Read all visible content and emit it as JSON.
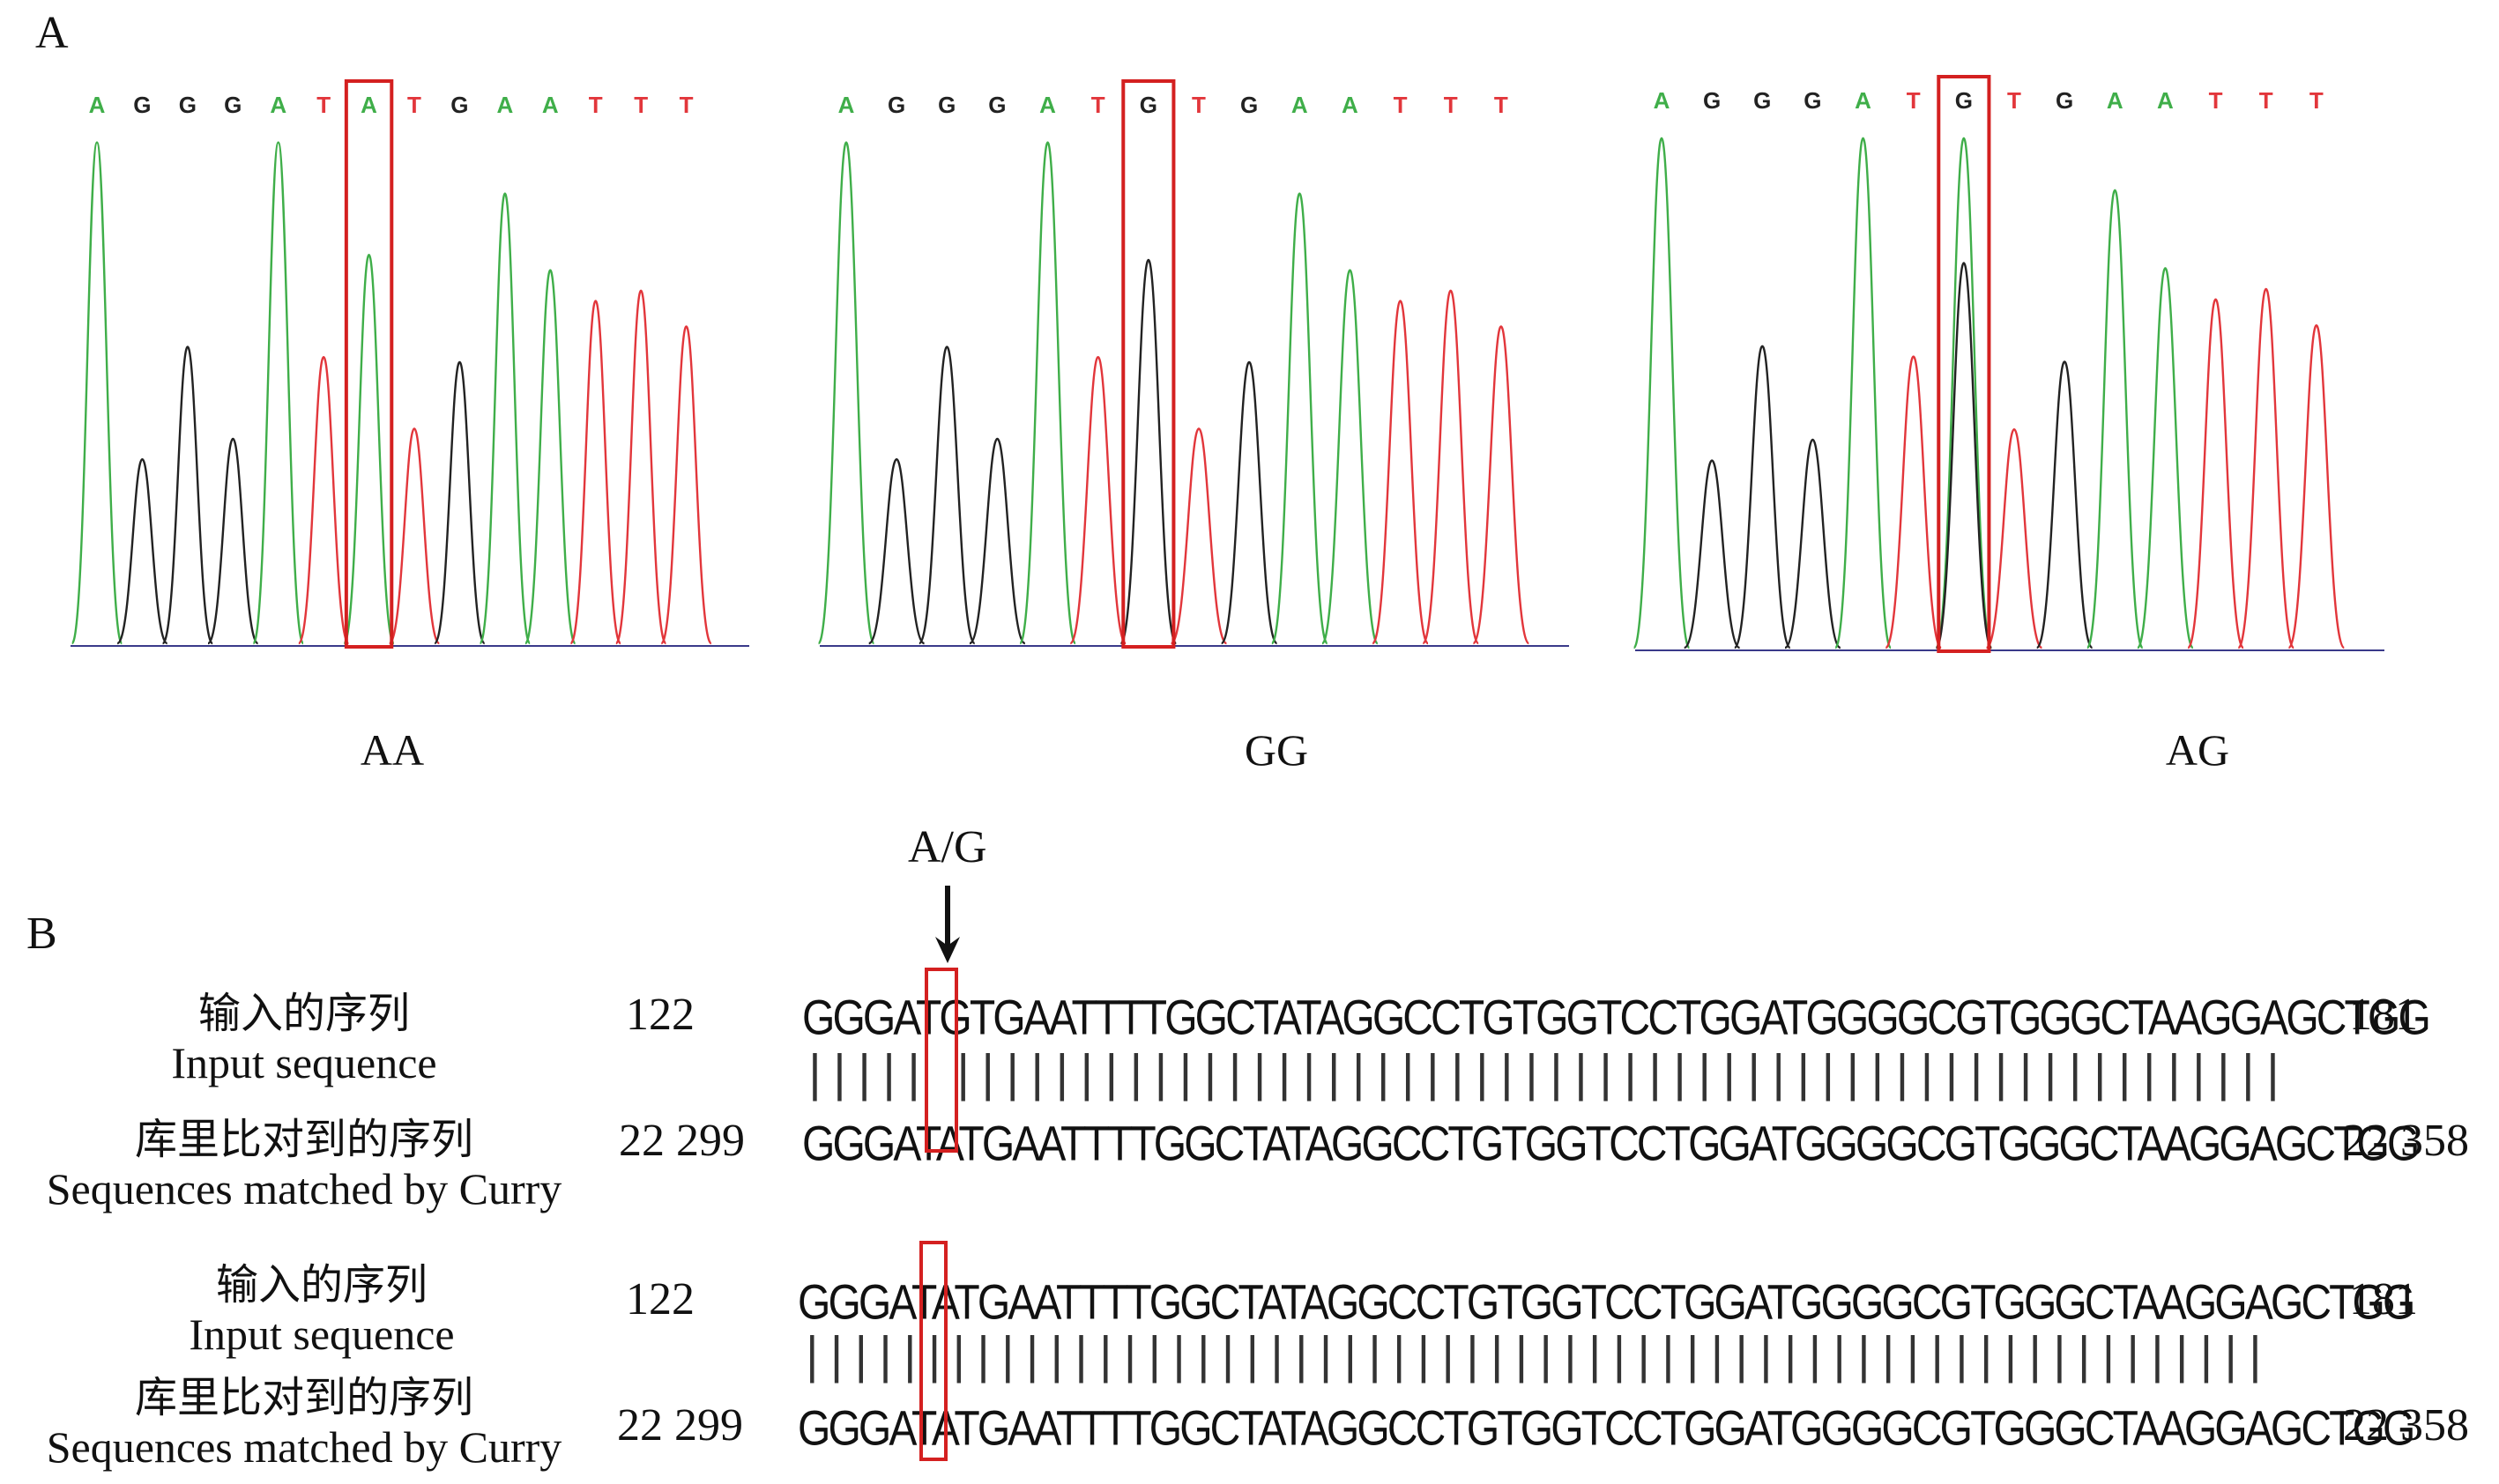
{
  "panel_a": {
    "label": "A",
    "chromatograms": [
      {
        "genotype": "AA",
        "bases": [
          "A",
          "G",
          "G",
          "G",
          "A",
          "T",
          "A",
          "T",
          "G",
          "A",
          "A",
          "T",
          "T",
          "T"
        ],
        "highlight_index": 6
      },
      {
        "genotype": "GG",
        "bases": [
          "A",
          "G",
          "G",
          "G",
          "A",
          "T",
          "G",
          "T",
          "G",
          "A",
          "A",
          "T",
          "T",
          "T"
        ],
        "highlight_index": 6
      },
      {
        "genotype": "AG",
        "bases": [
          "A",
          "G",
          "G",
          "G",
          "A",
          "T",
          "G",
          "T",
          "G",
          "A",
          "A",
          "T",
          "T",
          "T"
        ],
        "highlight_index": 6
      }
    ],
    "base_colors": {
      "A": "#3fae49",
      "G": "#222222",
      "T": "#e2363b",
      "C": "#2040d0"
    }
  },
  "panel_b": {
    "label": "B",
    "snp_label": "A/G",
    "alignments": [
      {
        "input_cn": "输入的序列",
        "input_en": "Input sequence",
        "match_cn": "库里比对到的序列",
        "match_en": "Sequences matched by Curry",
        "input_start": "122",
        "input_end": "181",
        "match_start": "22 299",
        "match_end": "22 358",
        "input_seq": "GGGATGTGAATTTTGGCTATAGGCCTGTGGTCCTGGATGGGGCGTGGGCTAAGGAGCTGG",
        "match_seq": "GGGATATGAATTTTGGCTATAGGCCTGTGGTCCTGGATGGGGCGTGGGCTAAGGAGCTGG",
        "bars": "||||| ||||||||||||||||||||||||||||||||||||||||||||||||||||||"
      },
      {
        "input_cn": "输入的序列",
        "input_en": "Input sequence",
        "match_cn": "库里比对到的序列",
        "match_en": "Sequences matched by Curry",
        "input_start": "122",
        "input_end": "181",
        "match_start": "22 299",
        "match_end": "22 358",
        "input_seq": "GGGATATGAATTTTGGCTATAGGCCTGTGGTCCTGGATGGGGCGTGGGCTAAGGAGCTGG",
        "match_seq": "GGGATATGAATTTTGGCTATAGGCCTGTGGTCCTGGATGGGGCGTGGGCTAAGGAGCTGG",
        "bars": "||||||||||||||||||||||||||||||||||||||||||||||||||||||||||||"
      }
    ]
  }
}
